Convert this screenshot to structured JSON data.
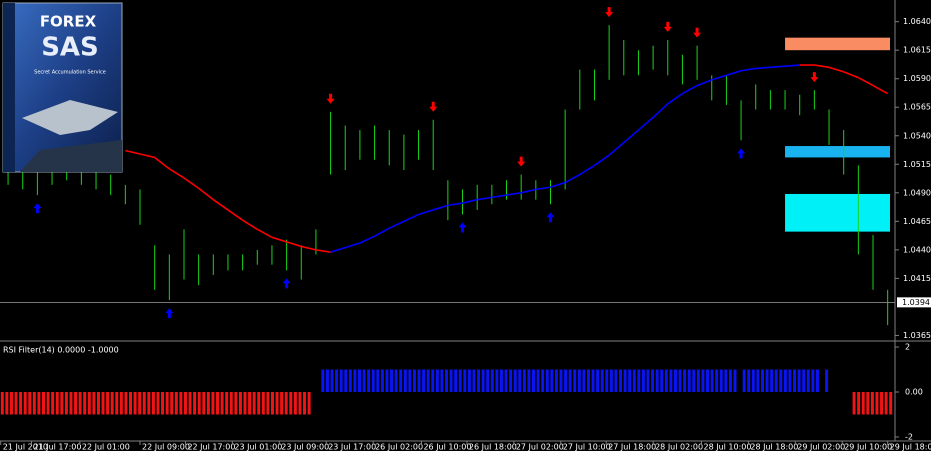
{
  "chart_data": [
    {
      "type": "hilo",
      "bar_color": "#19d419",
      "high": [
        1.0519,
        1.0514,
        1.051,
        1.0514,
        1.0519,
        1.0514,
        1.051,
        1.0506,
        1.0497,
        1.0493,
        1.0444,
        1.0436,
        1.0458,
        1.0436,
        1.0436,
        1.0436,
        1.0436,
        1.044,
        1.0444,
        1.0449,
        1.0444,
        1.0458,
        1.0561,
        1.0549,
        1.0545,
        1.0549,
        1.0545,
        1.0541,
        1.0545,
        1.0554,
        1.0501,
        1.0493,
        1.0497,
        1.0497,
        1.0501,
        1.0506,
        1.0501,
        1.0501,
        1.0563,
        1.0598,
        1.0598,
        1.0637,
        1.0624,
        1.0615,
        1.0619,
        1.0624,
        1.0611,
        1.0619,
        1.0593,
        1.0593,
        1.0571,
        1.0585,
        1.058,
        1.058,
        1.0576,
        1.058,
        1.0563,
        1.0545,
        1.0514,
        1.0453,
        1.0405
      ],
      "low": [
        1.0497,
        1.0493,
        1.0488,
        1.0497,
        1.0501,
        1.0497,
        1.0493,
        1.0488,
        1.048,
        1.0462,
        1.0405,
        1.0396,
        1.0414,
        1.0409,
        1.0418,
        1.0422,
        1.0422,
        1.0427,
        1.0427,
        1.0422,
        1.0414,
        1.0436,
        1.0506,
        1.051,
        1.0519,
        1.0519,
        1.0514,
        1.051,
        1.0519,
        1.051,
        1.0466,
        1.0471,
        1.0475,
        1.048,
        1.0484,
        1.0484,
        1.0484,
        1.048,
        1.0493,
        1.0563,
        1.0571,
        1.0589,
        1.0593,
        1.0593,
        1.0598,
        1.0593,
        1.0585,
        1.0589,
        1.0571,
        1.0567,
        1.0536,
        1.0563,
        1.0563,
        1.0563,
        1.0558,
        1.0563,
        1.0532,
        1.0506,
        1.0436,
        1.0405,
        1.0374
      ],
      "ma": [
        null,
        null,
        null,
        null,
        null,
        null,
        null,
        null,
        1.0527,
        1.0524,
        1.0521,
        1.0511,
        1.0503,
        1.0494,
        1.0484,
        1.0475,
        1.0466,
        1.0458,
        1.0451,
        1.0447,
        1.0443,
        1.044,
        1.0438,
        1.0442,
        1.0446,
        1.0452,
        1.0459,
        1.0465,
        1.0471,
        1.0475,
        1.0479,
        1.0481,
        1.0484,
        1.0486,
        1.0488,
        1.049,
        1.0493,
        1.0495,
        1.0499,
        1.0506,
        1.0514,
        1.0523,
        1.0534,
        1.0545,
        1.0556,
        1.0568,
        1.0577,
        1.0584,
        1.0589,
        1.0593,
        1.0597,
        1.0599,
        1.06,
        1.0601,
        1.0602,
        1.0602,
        1.06,
        1.0596,
        1.0591,
        1.0584,
        1.0577
      ],
      "ma_rising_color": "#0000ff",
      "ma_falling_color": "#ff0000",
      "signals": {
        "buy": [
          2,
          11,
          19,
          31,
          37,
          50
        ],
        "sell": [
          22,
          29,
          35,
          41,
          45,
          47,
          55
        ],
        "buy_color": "#0000ff",
        "sell_color": "#ff0000"
      },
      "zones": [
        {
          "start": 53,
          "top": 1.0626,
          "bottom": 1.0615,
          "color": "#fa8c64"
        },
        {
          "start": 53,
          "top": 1.0531,
          "bottom": 1.0521,
          "color": "#19b4f0"
        },
        {
          "start": 53,
          "top": 1.0489,
          "bottom": 1.0456,
          "color": "#00f0f8"
        }
      ],
      "last_price": 1.0394,
      "xlim": [
        -0.55,
        60.5
      ],
      "ylim": [
        1.0361,
        1.0659
      ],
      "yticks": [
        {
          "value": 1.064,
          "label": "1.0640"
        },
        1.0615,
        {
          "value": 1.059,
          "label": "1.0590"
        },
        1.0565,
        {
          "value": 1.054,
          "label": "1.0540"
        },
        1.0515,
        {
          "value": 1.049,
          "label": "1.0490"
        },
        1.0465,
        {
          "value": 1.044,
          "label": "1.0440"
        },
        1.0415,
        1.0365
      ],
      "xticks": [
        {
          "value": -0.5,
          "label": "21 Jul 2010"
        },
        {
          "value": 1.6,
          "label": "21 Jul 17:00"
        },
        {
          "value": 4.9,
          "label": "22 Jul 01:00"
        },
        {
          "value": 9,
          "label": "22 Jul 09:00"
        },
        {
          "value": 12.1,
          "label": "22 Jul 17:00"
        },
        {
          "value": 15.3,
          "label": "23 Jul 01:00"
        },
        {
          "value": 18.5,
          "label": "23 Jul 09:00"
        },
        {
          "value": 21.7,
          "label": "23 Jul 17:00"
        },
        {
          "value": 24.9,
          "label": "26 Jul 02:00"
        },
        {
          "value": 28.2,
          "label": "26 Jul 10:00"
        },
        {
          "value": 31.3,
          "label": "26 Jul 18:00"
        },
        {
          "value": 34.5,
          "label": "27 Jul 02:00"
        },
        {
          "value": 37.7,
          "label": "27 Jul 10:00"
        },
        {
          "value": 40.8,
          "label": "27 Jul 18:00"
        },
        {
          "value": 44,
          "label": "28 Jul 02:00"
        },
        {
          "value": 47.3,
          "label": "28 Jul 10:00"
        },
        {
          "value": 50.5,
          "label": "28 Jul 18:00"
        },
        {
          "value": 53.7,
          "label": "29 Jul 02:00"
        },
        {
          "value": 56.9,
          "label": "29 Jul 10:00"
        },
        {
          "value": 60,
          "label": "29 Jul 18:00"
        }
      ]
    },
    {
      "type": "bar",
      "title": "RSI Filter(14) 0.0000 -1.0000",
      "positive_color": "#0a14f0",
      "negative_color": "#f01414",
      "values": [
        -1,
        -1,
        -1,
        -1,
        -1,
        -1,
        -1,
        -1,
        -1,
        -1,
        -1,
        -1,
        -1,
        -1,
        -1,
        -1,
        -1,
        -1,
        -1,
        -1,
        -1,
        -1,
        -1,
        -1,
        -1,
        -1,
        -1,
        -1,
        -1,
        -1,
        -1,
        -1,
        -1,
        -1,
        -1,
        -1,
        -1,
        -1,
        -1,
        -1,
        -1,
        -1,
        -1,
        -1,
        -1,
        -1,
        -1,
        -1,
        -1,
        -1,
        -1,
        -1,
        -1,
        -1,
        -1,
        -1,
        -1,
        -1,
        -1,
        -1,
        -1,
        -1,
        -1,
        -1,
        -1,
        -1,
        -1,
        -1,
        0,
        0,
        1,
        1,
        1,
        1,
        1,
        1,
        1,
        1,
        1,
        1,
        1,
        1,
        1,
        1,
        1,
        1,
        1,
        1,
        1,
        1,
        1,
        1,
        1,
        1,
        1,
        1,
        1,
        1,
        1,
        1,
        1,
        1,
        1,
        1,
        1,
        1,
        1,
        1,
        1,
        1,
        1,
        1,
        1,
        1,
        1,
        1,
        1,
        1,
        1,
        1,
        1,
        1,
        1,
        1,
        1,
        1,
        1,
        1,
        1,
        1,
        1,
        1,
        1,
        1,
        1,
        1,
        1,
        1,
        1,
        1,
        1,
        1,
        1,
        1,
        1,
        1,
        1,
        1,
        1,
        1,
        1,
        1,
        1,
        1,
        1,
        1,
        1,
        1,
        1,
        1,
        1,
        0,
        1,
        1,
        1,
        1,
        1,
        1,
        1,
        1,
        1,
        1,
        1,
        1,
        1,
        1,
        1,
        1,
        1,
        0,
        1,
        0,
        0,
        0,
        0,
        0,
        -1,
        -1,
        -1,
        -1,
        -1,
        -1,
        -1,
        -1,
        -1
      ],
      "xlim": [
        -0.5,
        194.5
      ],
      "ylim": [
        -2.18,
        2.18
      ],
      "yticks": [
        2,
        {
          "value": 0,
          "label": "0.00"
        },
        -2
      ]
    }
  ],
  "overlay_image": {
    "brand": "FOREX",
    "product": "SAS",
    "tagline": "Secret Accumulation Service"
  }
}
